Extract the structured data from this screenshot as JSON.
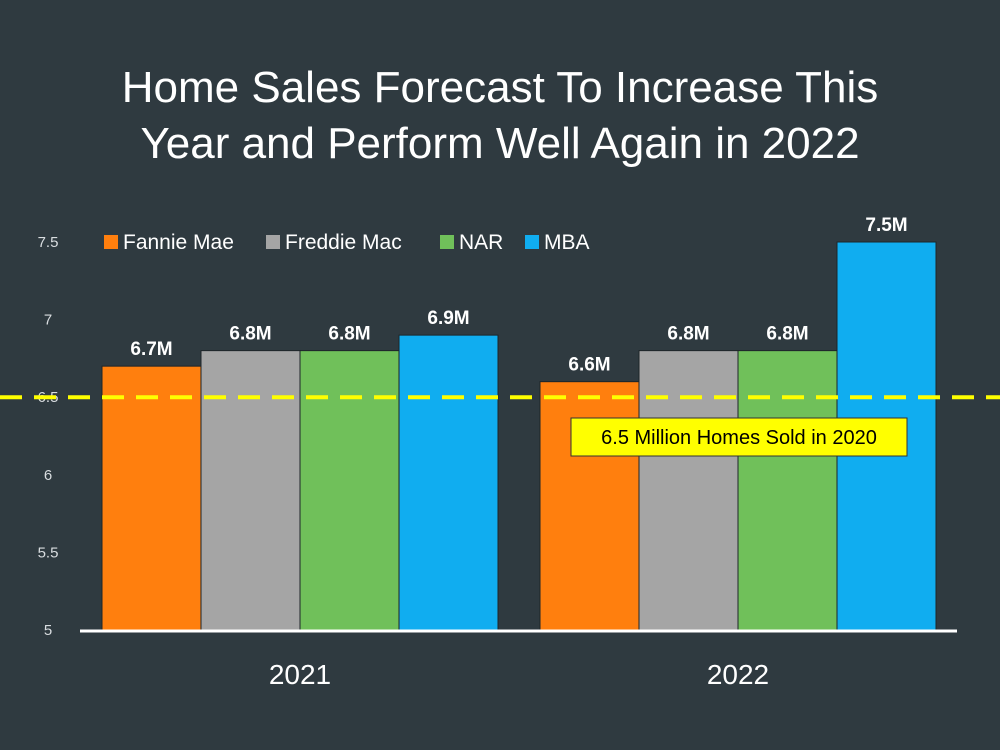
{
  "chart_data": {
    "type": "bar",
    "title_lines": [
      "Home Sales Forecast To Increase This",
      "Year and Perform Well Again in 2022"
    ],
    "categories": [
      "2021",
      "2022"
    ],
    "series": [
      {
        "name": "Fannie Mae",
        "color": "#ff7f0e",
        "values": [
          6.7,
          6.6
        ],
        "labels": [
          "6.7M",
          "6.6M"
        ]
      },
      {
        "name": "Freddie Mac",
        "color": "#a5a5a5",
        "values": [
          6.8,
          6.8
        ],
        "labels": [
          "6.8M",
          "6.8M"
        ]
      },
      {
        "name": "NAR",
        "color": "#70c05a",
        "values": [
          6.8,
          6.8
        ],
        "labels": [
          "6.8M",
          "6.8M"
        ]
      },
      {
        "name": "MBA",
        "color": "#10adf0",
        "values": [
          6.9,
          7.5
        ],
        "labels": [
          "6.9M",
          "7.5M"
        ]
      }
    ],
    "ylim": [
      5,
      7.5
    ],
    "yticks": [
      "5",
      "5.5",
      "6",
      "6.5",
      "7",
      "7.5"
    ],
    "ytick_values": [
      5,
      5.5,
      6,
      6.5,
      7,
      7.5
    ],
    "reference_line": {
      "value": 6.5,
      "color": "#ffff00",
      "label": "6.5 Million Homes Sold in 2020"
    },
    "legend_position": "top-left",
    "grid": false
  }
}
